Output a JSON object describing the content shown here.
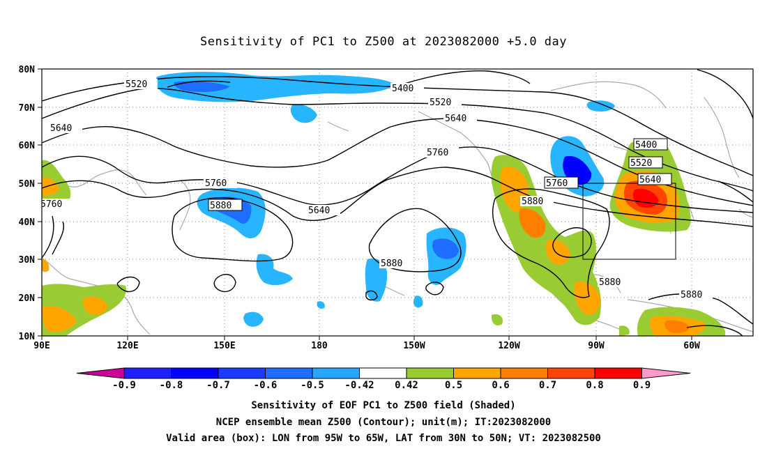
{
  "title": "Sensitivity of PC1 to Z500 at 2023082000 +5.0 day",
  "lat_ticks": [
    "80N",
    "70N",
    "60N",
    "50N",
    "40N",
    "30N",
    "20N",
    "10N"
  ],
  "lon_ticks": [
    "90E",
    "120E",
    "150E",
    "180",
    "150W",
    "120W",
    "90W",
    "60W"
  ],
  "contour_labels": [
    "5520",
    "5400",
    "5520",
    "5640",
    "5640",
    "5760",
    "5760",
    "5880",
    "5640",
    "5760",
    "5880",
    "5400",
    "5520",
    "5640",
    "5880",
    "5880",
    "5880",
    "5760"
  ],
  "colorbar": {
    "labels": [
      "-0.9",
      "-0.8",
      "-0.7",
      "-0.6",
      "-0.5",
      "-0.42",
      "0.42",
      "0.5",
      "0.6",
      "0.7",
      "0.8",
      "0.9"
    ],
    "colors": [
      "#2020ff",
      "#0000ff",
      "#1a3cff",
      "#1e6dff",
      "#27a5ff",
      "#ffffff",
      "#99cc33",
      "#ffa500",
      "#ff7f00",
      "#ff4500",
      "#ff0000"
    ],
    "left_arrow_color": "#cc0099",
    "right_arrow_color": "#ff99cc"
  },
  "captions": [
    "Sensitivity of EOF PC1 to Z500 field (Shaded)",
    "NCEP ensemble mean Z500 (Contour); unit(m); IT:2023082000",
    "Valid area (box): LON from 95W to 65W, LAT from 30N to 50N; VT: 2023082500"
  ]
}
